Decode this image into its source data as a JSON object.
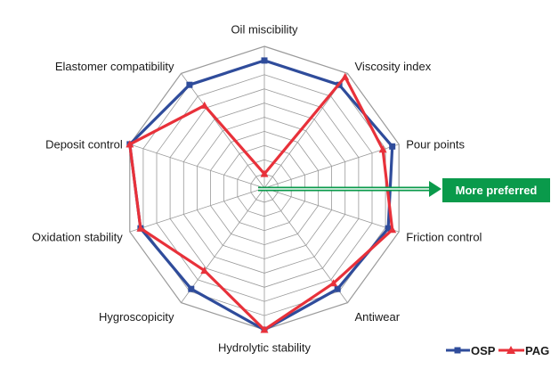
{
  "chart_data": {
    "type": "radar",
    "categories": [
      "Oil miscibility",
      "Viscosity index",
      "Pour points",
      "Friction control",
      "Antiwear",
      "Hydrolytic stability",
      "Hygroscopicity",
      "Oxidation stability",
      "Deposit control",
      "Elastomer compatibility"
    ],
    "rmax": 10,
    "grid_levels": 10,
    "series": [
      {
        "name": "OSP",
        "color": "#2f4c9b",
        "marker": "square",
        "values": [
          9,
          9,
          9.5,
          9.2,
          8.8,
          10,
          8.8,
          9.2,
          10,
          9
        ]
      },
      {
        "name": "PAG",
        "color": "#e8313a",
        "marker": "triangle",
        "values": [
          1,
          9.7,
          8.8,
          9.5,
          8.3,
          10,
          7.2,
          9.2,
          10,
          7.2
        ]
      }
    ],
    "annotation": {
      "text": "More preferred",
      "color": "#0a9a4b"
    }
  }
}
